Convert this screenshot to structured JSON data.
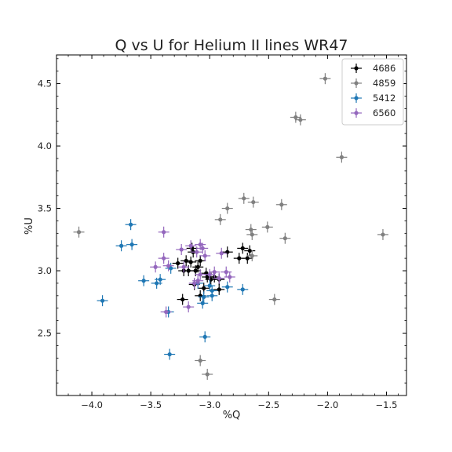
{
  "chart_data": {
    "type": "scatter",
    "title": "Q vs U for Helium II lines WR47",
    "xlabel": "%Q",
    "ylabel": "%U",
    "xlim": [
      -4.3,
      -1.33
    ],
    "ylim": [
      2.0,
      4.73
    ],
    "x_ticks": [
      -4.0,
      -3.5,
      -3.0,
      -2.5,
      -2.0,
      -1.5
    ],
    "x_tick_labels": [
      "−4.0",
      "−3.5",
      "−3.0",
      "−2.5",
      "−2.0",
      "−1.5"
    ],
    "y_ticks": [
      2.5,
      3.0,
      3.5,
      4.0,
      4.5
    ],
    "y_tick_labels": [
      "2.5",
      "3.0",
      "3.5",
      "4.0",
      "4.5"
    ],
    "grid": false,
    "error_bars": true,
    "legend_position": "top-right",
    "series": [
      {
        "name": "4686",
        "color": "#000000",
        "points": [
          [
            -3.15,
            3.18
          ],
          [
            -3.14,
            3.15
          ],
          [
            -3.2,
            3.08
          ],
          [
            -3.16,
            3.07
          ],
          [
            -3.08,
            3.08
          ],
          [
            -3.1,
            3.03
          ],
          [
            -3.18,
            3.0
          ],
          [
            -3.22,
            3.0
          ],
          [
            -3.12,
            3.0
          ],
          [
            -3.27,
            3.06
          ],
          [
            -3.03,
            2.98
          ],
          [
            -3.02,
            2.95
          ],
          [
            -2.99,
            2.93
          ],
          [
            -2.96,
            2.95
          ],
          [
            -2.92,
            2.93
          ],
          [
            -2.72,
            3.18
          ],
          [
            -2.66,
            3.16
          ],
          [
            -2.68,
            3.1
          ],
          [
            -2.75,
            3.1
          ],
          [
            -2.85,
            3.15
          ],
          [
            -3.13,
            2.89
          ],
          [
            -3.05,
            2.86
          ],
          [
            -2.92,
            2.85
          ],
          [
            -3.08,
            2.8
          ],
          [
            -3.23,
            2.77
          ]
        ]
      },
      {
        "name": "4859",
        "color": "#808080",
        "points": [
          [
            -2.02,
            4.54
          ],
          [
            -2.27,
            4.23
          ],
          [
            -2.23,
            4.21
          ],
          [
            -1.88,
            3.91
          ],
          [
            -2.71,
            3.58
          ],
          [
            -2.85,
            3.5
          ],
          [
            -2.63,
            3.55
          ],
          [
            -2.39,
            3.53
          ],
          [
            -2.91,
            3.41
          ],
          [
            -2.51,
            3.35
          ],
          [
            -2.65,
            3.33
          ],
          [
            -2.36,
            3.26
          ],
          [
            -2.64,
            3.29
          ],
          [
            -4.11,
            3.31
          ],
          [
            -1.53,
            3.29
          ],
          [
            -2.64,
            3.12
          ],
          [
            -2.45,
            2.77
          ],
          [
            -3.08,
            2.28
          ],
          [
            -3.02,
            2.17
          ]
        ]
      },
      {
        "name": "5412",
        "color": "#1f77b4",
        "points": [
          [
            -3.67,
            3.37
          ],
          [
            -3.75,
            3.2
          ],
          [
            -3.66,
            3.21
          ],
          [
            -3.33,
            3.02
          ],
          [
            -3.42,
            2.93
          ],
          [
            -3.45,
            2.9
          ],
          [
            -3.56,
            2.92
          ],
          [
            -3.91,
            2.76
          ],
          [
            -3.35,
            2.67
          ],
          [
            -3.34,
            2.33
          ],
          [
            -3.04,
            2.47
          ],
          [
            -3.0,
            2.88
          ],
          [
            -2.98,
            2.84
          ],
          [
            -3.05,
            2.79
          ],
          [
            -2.98,
            2.8
          ],
          [
            -2.72,
            2.85
          ],
          [
            -3.06,
            2.74
          ],
          [
            -2.85,
            2.87
          ],
          [
            -3.1,
            2.9
          ]
        ]
      },
      {
        "name": "6560",
        "color": "#9467bd",
        "points": [
          [
            -3.39,
            3.31
          ],
          [
            -3.24,
            3.17
          ],
          [
            -3.16,
            3.2
          ],
          [
            -3.08,
            3.21
          ],
          [
            -3.06,
            3.18
          ],
          [
            -3.11,
            3.15
          ],
          [
            -3.04,
            3.12
          ],
          [
            -3.39,
            3.1
          ],
          [
            -3.46,
            3.03
          ],
          [
            -3.35,
            3.04
          ],
          [
            -3.22,
            3.03
          ],
          [
            -2.9,
            3.14
          ],
          [
            -3.08,
            2.97
          ],
          [
            -3.0,
            2.97
          ],
          [
            -2.96,
            2.99
          ],
          [
            -2.92,
            2.94
          ],
          [
            -2.86,
            2.99
          ],
          [
            -2.83,
            2.95
          ],
          [
            -3.1,
            2.92
          ],
          [
            -3.13,
            2.9
          ],
          [
            -3.18,
            2.71
          ],
          [
            -3.37,
            2.67
          ]
        ]
      }
    ]
  }
}
